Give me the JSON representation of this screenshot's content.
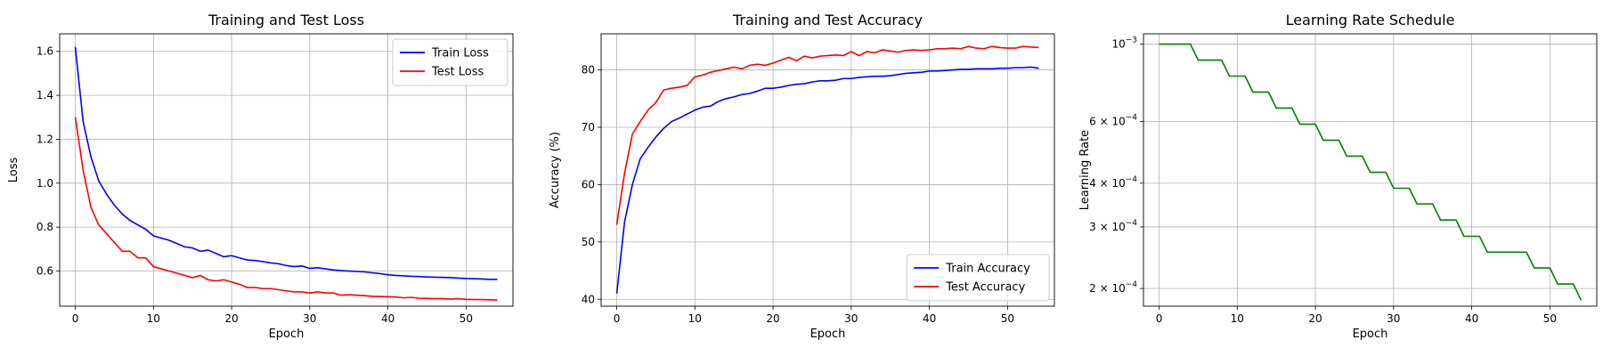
{
  "chart_data": [
    {
      "type": "line",
      "title": "Training and Test Loss",
      "xlabel": "Epoch",
      "ylabel": "Loss",
      "xlim": [
        -2,
        56
      ],
      "ylim": [
        0.44,
        1.68
      ],
      "xticks": [
        0,
        10,
        20,
        30,
        40,
        50
      ],
      "xtick_labels": [
        "0",
        "10",
        "20",
        "30",
        "40",
        "50"
      ],
      "yticks": [
        0.6,
        0.8,
        1.0,
        1.2,
        1.4,
        1.6
      ],
      "ytick_labels": [
        "0.6",
        "0.8",
        "1.0",
        "1.2",
        "1.4",
        "1.6"
      ],
      "grid": true,
      "legend": "upper right",
      "series": [
        {
          "name": "Train Loss",
          "color": "#0000ff",
          "x": [
            0,
            1,
            2,
            3,
            4,
            5,
            6,
            7,
            8,
            9,
            10,
            11,
            12,
            13,
            14,
            15,
            16,
            17,
            18,
            19,
            20,
            21,
            22,
            23,
            24,
            25,
            26,
            27,
            28,
            29,
            30,
            31,
            32,
            33,
            34,
            35,
            36,
            37,
            38,
            39,
            40,
            41,
            42,
            43,
            44,
            45,
            46,
            47,
            48,
            49,
            50,
            51,
            52,
            53,
            54
          ],
          "values": [
            1.62,
            1.28,
            1.12,
            1.01,
            0.95,
            0.9,
            0.86,
            0.83,
            0.81,
            0.79,
            0.76,
            0.75,
            0.74,
            0.725,
            0.71,
            0.705,
            0.69,
            0.695,
            0.68,
            0.665,
            0.67,
            0.66,
            0.65,
            0.648,
            0.643,
            0.637,
            0.633,
            0.625,
            0.62,
            0.623,
            0.612,
            0.615,
            0.61,
            0.605,
            0.602,
            0.6,
            0.598,
            0.596,
            0.592,
            0.588,
            0.583,
            0.58,
            0.578,
            0.576,
            0.575,
            0.573,
            0.572,
            0.571,
            0.57,
            0.568,
            0.566,
            0.565,
            0.564,
            0.562,
            0.562
          ]
        },
        {
          "name": "Test Loss",
          "color": "#ff0000",
          "x": [
            0,
            1,
            2,
            3,
            4,
            5,
            6,
            7,
            8,
            9,
            10,
            11,
            12,
            13,
            14,
            15,
            16,
            17,
            18,
            19,
            20,
            21,
            22,
            23,
            24,
            25,
            26,
            27,
            28,
            29,
            30,
            31,
            32,
            33,
            34,
            35,
            36,
            37,
            38,
            39,
            40,
            41,
            42,
            43,
            44,
            45,
            46,
            47,
            48,
            49,
            50,
            51,
            52,
            53,
            54
          ],
          "values": [
            1.3,
            1.06,
            0.89,
            0.81,
            0.77,
            0.73,
            0.69,
            0.69,
            0.66,
            0.66,
            0.62,
            0.61,
            0.6,
            0.59,
            0.58,
            0.57,
            0.58,
            0.56,
            0.555,
            0.56,
            0.55,
            0.54,
            0.525,
            0.525,
            0.52,
            0.52,
            0.515,
            0.51,
            0.505,
            0.505,
            0.5,
            0.505,
            0.5,
            0.5,
            0.49,
            0.492,
            0.49,
            0.488,
            0.485,
            0.484,
            0.483,
            0.482,
            0.478,
            0.48,
            0.476,
            0.475,
            0.474,
            0.474,
            0.472,
            0.474,
            0.471,
            0.47,
            0.47,
            0.469,
            0.468
          ]
        }
      ]
    },
    {
      "type": "line",
      "title": "Training and Test Accuracy",
      "xlabel": "Epoch",
      "ylabel": "Accuracy (%)",
      "xlim": [
        -2,
        56
      ],
      "ylim": [
        38.8,
        86.3
      ],
      "xticks": [
        0,
        10,
        20,
        30,
        40,
        50
      ],
      "xtick_labels": [
        "0",
        "10",
        "20",
        "30",
        "40",
        "50"
      ],
      "yticks": [
        40,
        50,
        60,
        70,
        80
      ],
      "ytick_labels": [
        "40",
        "50",
        "60",
        "70",
        "80"
      ],
      "grid": true,
      "legend": "lower right",
      "series": [
        {
          "name": "Train Accuracy",
          "color": "#0000ff",
          "x": [
            0,
            1,
            2,
            3,
            4,
            5,
            6,
            7,
            8,
            9,
            10,
            11,
            12,
            13,
            14,
            15,
            16,
            17,
            18,
            19,
            20,
            21,
            22,
            23,
            24,
            25,
            26,
            27,
            28,
            29,
            30,
            31,
            32,
            33,
            34,
            35,
            36,
            37,
            38,
            39,
            40,
            41,
            42,
            43,
            44,
            45,
            46,
            47,
            48,
            49,
            50,
            51,
            52,
            53,
            54
          ],
          "values": [
            41.0,
            53.5,
            60.0,
            64.5,
            66.5,
            68.3,
            69.8,
            71.0,
            71.6,
            72.3,
            73.0,
            73.5,
            73.7,
            74.5,
            75.0,
            75.3,
            75.7,
            75.9,
            76.3,
            76.8,
            76.8,
            77.0,
            77.3,
            77.5,
            77.6,
            77.9,
            78.1,
            78.1,
            78.2,
            78.5,
            78.5,
            78.7,
            78.8,
            78.9,
            78.9,
            79.0,
            79.2,
            79.4,
            79.5,
            79.6,
            79.8,
            79.8,
            79.9,
            80.0,
            80.1,
            80.1,
            80.2,
            80.2,
            80.2,
            80.3,
            80.3,
            80.4,
            80.4,
            80.5,
            80.3
          ]
        },
        {
          "name": "Test Accuracy",
          "color": "#ff0000",
          "x": [
            0,
            1,
            2,
            3,
            4,
            5,
            6,
            7,
            8,
            9,
            10,
            11,
            12,
            13,
            14,
            15,
            16,
            17,
            18,
            19,
            20,
            21,
            22,
            23,
            24,
            25,
            26,
            27,
            28,
            29,
            30,
            31,
            32,
            33,
            34,
            35,
            36,
            37,
            38,
            39,
            40,
            41,
            42,
            43,
            44,
            45,
            46,
            47,
            48,
            49,
            50,
            51,
            52,
            53,
            54
          ],
          "values": [
            53.0,
            62.0,
            68.8,
            71.0,
            73.0,
            74.3,
            76.5,
            76.8,
            77.0,
            77.3,
            78.8,
            79.1,
            79.6,
            79.9,
            80.2,
            80.5,
            80.2,
            80.8,
            81.0,
            80.8,
            81.2,
            81.7,
            82.2,
            81.6,
            82.4,
            82.1,
            82.4,
            82.5,
            82.6,
            82.5,
            83.2,
            82.5,
            83.2,
            83.0,
            83.5,
            83.3,
            83.1,
            83.4,
            83.5,
            83.4,
            83.5,
            83.7,
            83.7,
            83.8,
            83.7,
            84.1,
            83.8,
            83.7,
            84.1,
            83.9,
            83.8,
            83.8,
            84.1,
            84.0,
            83.9
          ]
        }
      ]
    },
    {
      "type": "line",
      "title": "Learning Rate Schedule",
      "xlabel": "Epoch",
      "ylabel": "Learning Rate",
      "yscale": "log",
      "xlim": [
        -2,
        56
      ],
      "ylim": [
        0.000178,
        0.00107
      ],
      "xticks": [
        0,
        10,
        20,
        30,
        40,
        50
      ],
      "xtick_labels": [
        "0",
        "10",
        "20",
        "30",
        "40",
        "50"
      ],
      "yticks": [
        0.001,
        0.0006,
        0.0004,
        0.0003,
        0.0002
      ],
      "ytick_labels": [
        {
          "mant": "10",
          "exp": "−3"
        },
        {
          "mant": "6 × 10",
          "exp": "−4"
        },
        {
          "mant": "4 × 10",
          "exp": "−4"
        },
        {
          "mant": "3 × 10",
          "exp": "−4"
        },
        {
          "mant": "2 × 10",
          "exp": "−4"
        }
      ],
      "grid": true,
      "series": [
        {
          "color": "#008000",
          "x": [
            0,
            1,
            2,
            3,
            4,
            5,
            6,
            7,
            8,
            9,
            10,
            11,
            12,
            13,
            14,
            15,
            16,
            17,
            18,
            19,
            20,
            21,
            22,
            23,
            24,
            25,
            26,
            27,
            28,
            29,
            30,
            31,
            32,
            33,
            34,
            35,
            36,
            37,
            38,
            39,
            40,
            41,
            42,
            43,
            44,
            45,
            46,
            47,
            48,
            49,
            50,
            51,
            52,
            53,
            54
          ],
          "values": [
            0.001,
            0.001,
            0.001,
            0.001,
            0.001,
            0.0009,
            0.0009,
            0.0009,
            0.0009,
            0.00081,
            0.00081,
            0.00081,
            0.000729,
            0.000729,
            0.000729,
            0.000656,
            0.000656,
            0.000656,
            0.00059,
            0.00059,
            0.00059,
            0.000531,
            0.000531,
            0.000531,
            0.000478,
            0.000478,
            0.000478,
            0.00043,
            0.00043,
            0.00043,
            0.000387,
            0.000387,
            0.000387,
            0.000349,
            0.000349,
            0.000349,
            0.000314,
            0.000314,
            0.000314,
            0.000282,
            0.000282,
            0.000282,
            0.000254,
            0.000254,
            0.000254,
            0.000254,
            0.000254,
            0.000254,
            0.000229,
            0.000229,
            0.000229,
            0.000206,
            0.000206,
            0.000206,
            0.000185
          ]
        }
      ]
    }
  ]
}
